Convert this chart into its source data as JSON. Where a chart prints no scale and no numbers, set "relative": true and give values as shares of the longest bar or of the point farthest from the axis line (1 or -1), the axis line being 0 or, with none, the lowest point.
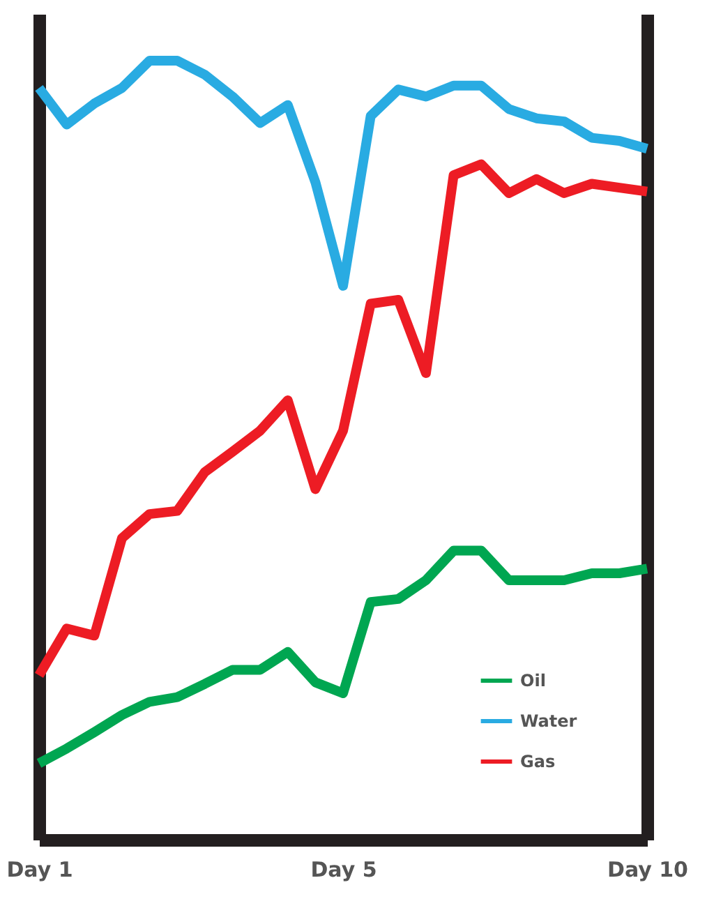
{
  "chart_data": {
    "type": "line",
    "relative": true,
    "legend": "bottom right",
    "marker": "none",
    "line_style": "solid",
    "categories": [
      "Day 1",
      null,
      null,
      null,
      null,
      null,
      null,
      null,
      null,
      null,
      null,
      "Day 5",
      null,
      null,
      null,
      null,
      null,
      null,
      null,
      null,
      null,
      null,
      "Day 10"
    ],
    "series": [
      {
        "name": "Oil",
        "color": "#00a651",
        "values": [
          0.098,
          0.117,
          0.138,
          0.16,
          0.177,
          0.183,
          0.2,
          0.218,
          0.218,
          0.241,
          0.202,
          0.188,
          0.305,
          0.309,
          0.333,
          0.371,
          0.371,
          0.333,
          0.333,
          0.333,
          0.342,
          0.342,
          0.348
        ]
      },
      {
        "name": "Water",
        "color": "#29abe2",
        "values": [
          0.965,
          0.918,
          0.945,
          0.965,
          1,
          1,
          0.982,
          0.954,
          0.92,
          0.943,
          0.844,
          0.711,
          0.929,
          0.963,
          0.954,
          0.968,
          0.968,
          0.938,
          0.926,
          0.922,
          0.901,
          0.897,
          0.887
        ]
      },
      {
        "name": "Gas",
        "color": "#ed1c24",
        "values": [
          0.211,
          0.271,
          0.262,
          0.387,
          0.418,
          0.422,
          0.472,
          0.498,
          0.525,
          0.564,
          0.45,
          0.525,
          0.688,
          0.693,
          0.599,
          0.853,
          0.867,
          0.83,
          0.848,
          0.83,
          0.842,
          0.837,
          0.832
        ]
      }
    ]
  }
}
